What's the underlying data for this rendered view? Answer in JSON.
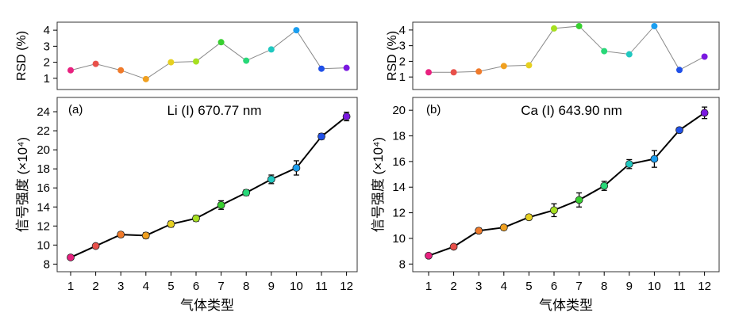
{
  "x_axis_label": "气体类型",
  "x_ticks": [
    1,
    2,
    3,
    4,
    5,
    6,
    7,
    8,
    9,
    10,
    11,
    12
  ],
  "point_colors": [
    "#e8217f",
    "#e8504a",
    "#f07a2a",
    "#f0a020",
    "#e6d020",
    "#a6e020",
    "#38d030",
    "#28d878",
    "#20c8c0",
    "#1a9ef0",
    "#2050e8",
    "#7a18e0"
  ],
  "chart_data": [
    {
      "type": "line",
      "panel": "(a)",
      "annotation": "Li (I) 670.77 nm",
      "rsd": {
        "ylabel": "RSD (%)",
        "ylim": [
          0.3,
          4.5
        ],
        "yticks": [
          1,
          2,
          3,
          4
        ],
        "x": [
          1,
          2,
          3,
          4,
          5,
          6,
          7,
          8,
          9,
          10,
          11,
          12
        ],
        "values": [
          1.5,
          1.9,
          1.5,
          0.95,
          2.0,
          2.05,
          3.25,
          2.1,
          2.8,
          4.0,
          1.6,
          1.65
        ]
      },
      "signal": {
        "ylabel": "信号强度 (×10⁴)",
        "ylim": [
          7.2,
          25.5
        ],
        "yticks": [
          8,
          10,
          12,
          14,
          16,
          18,
          20,
          22,
          24
        ],
        "x": [
          1,
          2,
          3,
          4,
          5,
          6,
          7,
          8,
          9,
          10,
          11,
          12
        ],
        "values": [
          8.7,
          9.9,
          11.1,
          11.0,
          12.2,
          12.8,
          14.2,
          15.5,
          16.9,
          18.1,
          21.4,
          23.5
        ],
        "errors": [
          0.15,
          0.2,
          0.25,
          0.3,
          0.3,
          0.3,
          0.45,
          0.3,
          0.45,
          0.75,
          0.3,
          0.45
        ]
      }
    },
    {
      "type": "line",
      "panel": "(b)",
      "annotation": "Ca (I) 643.90 nm",
      "rsd": {
        "ylabel": "RSD (%)",
        "ylim": [
          0.2,
          4.5
        ],
        "yticks": [
          1,
          2,
          3,
          4
        ],
        "x": [
          1,
          2,
          3,
          4,
          5,
          6,
          7,
          8,
          9,
          10,
          11,
          12
        ],
        "values": [
          1.3,
          1.3,
          1.35,
          1.7,
          1.75,
          4.1,
          4.25,
          2.65,
          2.45,
          4.25,
          1.45,
          2.3
        ]
      },
      "signal": {
        "ylabel": "信号强度 (×10⁴)",
        "ylim": [
          7.4,
          21.0
        ],
        "yticks": [
          8,
          10,
          12,
          14,
          16,
          18,
          20
        ],
        "x": [
          1,
          2,
          3,
          4,
          5,
          6,
          7,
          8,
          9,
          10,
          11,
          12
        ],
        "values": [
          8.65,
          9.35,
          10.6,
          10.85,
          11.65,
          12.2,
          13.0,
          14.1,
          15.8,
          16.2,
          18.45,
          19.8
        ],
        "errors": [
          0.1,
          0.15,
          0.2,
          0.2,
          0.2,
          0.5,
          0.55,
          0.35,
          0.35,
          0.65,
          0.2,
          0.45
        ]
      }
    }
  ]
}
